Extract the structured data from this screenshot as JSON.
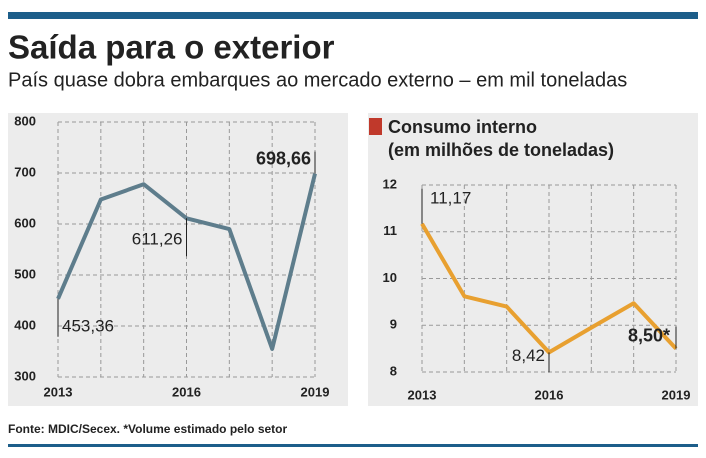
{
  "title": "Saída para o exterior",
  "subtitle": "País quase dobra embarques ao mercado externo – em mil toneladas",
  "source": "Fonte: MDIC/Secex. *Volume estimado pelo setor",
  "chart_data": [
    {
      "type": "line",
      "x": [
        2013,
        2014,
        2015,
        2016,
        2017,
        2018,
        2019
      ],
      "values": [
        453.36,
        648,
        678,
        611.26,
        590,
        355,
        698.66
      ],
      "value_labels": [
        "453,36",
        null,
        null,
        "611,26",
        null,
        null,
        "698,66"
      ],
      "color": "#5e7d8c",
      "xlim": [
        2013,
        2019
      ],
      "xticks": [
        2013,
        2016,
        2019
      ],
      "ylim": [
        300,
        800
      ],
      "yticks": [
        300,
        400,
        500,
        600,
        700,
        800
      ],
      "grid": true
    },
    {
      "type": "line",
      "title": "Consumo interno",
      "subtitle": "(em milhões de toneladas)",
      "title_color": "#c0392b",
      "x": [
        2013,
        2014,
        2015,
        2016,
        2017,
        2018,
        2019
      ],
      "values": [
        11.17,
        9.62,
        9.4,
        8.42,
        8.95,
        9.47,
        8.5
      ],
      "value_labels": [
        "11,17",
        null,
        null,
        "8,42",
        null,
        null,
        "8,50*"
      ],
      "color": "#e8a030",
      "xlim": [
        2013,
        2019
      ],
      "xticks": [
        2013,
        2016,
        2019
      ],
      "ylim": [
        8,
        12
      ],
      "yticks": [
        8,
        9,
        10,
        11,
        12
      ],
      "grid": true
    }
  ]
}
